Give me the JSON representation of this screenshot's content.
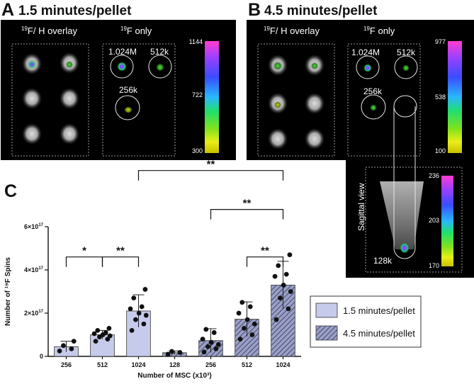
{
  "panel_a": {
    "letter": "A",
    "title": "1.5 minutes/pellet",
    "overlay_label": "F/ H overlay",
    "overlay_sup1": "19",
    "overlay_sup2": "1",
    "f_only_label": "F only",
    "f_only_sup": "19",
    "cell_labels": [
      "1.024M",
      "512k",
      "256k"
    ],
    "scale_ticks": [
      "1144",
      "722",
      "300"
    ]
  },
  "panel_b": {
    "letter": "B",
    "title": "4.5 minutes/pellet",
    "overlay_label": "F/ H overlay",
    "overlay_sup1": "19",
    "overlay_sup2": "1",
    "f_only_label": "F only",
    "f_only_sup": "19",
    "cell_labels": [
      "1.024M",
      "512k",
      "256k"
    ],
    "scale_ticks": [
      "977",
      "538",
      "100"
    ],
    "sagittal_label": "Sagittal view",
    "sagittal_cell_label": "128k",
    "sagittal_scale_ticks": [
      "236",
      "203",
      "170"
    ]
  },
  "panel_c": {
    "letter": "C"
  },
  "colors": {
    "bar_light": "#c6cbec",
    "bar_hatched_bg": "#9aa0c8",
    "hatch_line": "#4a4e6e",
    "bar_edge": "#333333"
  },
  "chart_data": {
    "type": "bar",
    "categories": [
      "256",
      "512",
      "1024",
      "128",
      "256",
      "512",
      "1024"
    ],
    "xlabel": "Number of MSC (x10³)",
    "ylabel": "Number of ¹⁹F Spins",
    "ylim": [
      0,
      6e+17
    ],
    "yticks": [
      {
        "value": 0,
        "base": "0",
        "exp": ""
      },
      {
        "value": 2e+17,
        "base": "2×10",
        "exp": "17"
      },
      {
        "value": 4e+17,
        "base": "4×10",
        "exp": "17"
      },
      {
        "value": 6e+17,
        "base": "6×10",
        "exp": "17"
      }
    ],
    "series": [
      {
        "name": "1.5 minutes/pellet",
        "style": "solid",
        "bars": [
          {
            "index": 0,
            "mean": 4.5e+16,
            "sd": 2.5e+16,
            "points": [
              2.5e+16,
              3.5e+16,
              5e+16,
              7e+16
            ]
          },
          {
            "index": 1,
            "mean": 1e+17,
            "sd": 2e+16,
            "points": [
              7e+16,
              8e+16,
              9e+16,
              9.5e+16,
              1e+17,
              1.05e+17,
              1.1e+17,
              1.2e+17,
              1.3e+17
            ]
          },
          {
            "index": 2,
            "mean": 2.1e+17,
            "sd": 7.5e+16,
            "points": [
              1.2e+17,
              1.5e+17,
              1.7e+17,
              1.9e+17,
              2e+17,
              2.2e+17,
              2.3e+17,
              2.7e+17,
              3.1e+17
            ]
          }
        ]
      },
      {
        "name": "4.5 minutes/pellet",
        "style": "hatched",
        "bars": [
          {
            "index": 3,
            "mean": 1.7e+16,
            "sd": 8000000000000000.0,
            "points": [
              1e+16,
              1.8e+16,
              2.3e+16
            ]
          },
          {
            "index": 4,
            "mean": 7.3e+16,
            "sd": 5.5e+16,
            "points": [
              2e+16,
              3.5e+16,
              4.5e+16,
              5.5e+16,
              6.5e+16,
              8e+16,
              1.1e+17,
              1.25e+17
            ]
          },
          {
            "index": 5,
            "mean": 1.72e+17,
            "sd": 8e+16,
            "points": [
              8e+16,
              1e+17,
              1.3e+17,
              1.5e+17,
              1.7e+17,
              2e+17,
              2.3e+17,
              2.5e+17
            ]
          },
          {
            "index": 6,
            "mean": 3.3e+17,
            "sd": 1.1e+17,
            "points": [
              1.7e+17,
              2.2e+17,
              2.7e+17,
              3e+17,
              3.3e+17,
              3.7e+17,
              3.8e+17,
              4.2e+17,
              4.7e+17
            ]
          }
        ]
      }
    ],
    "significance": [
      {
        "from": 0,
        "to": 1,
        "label": "*",
        "y": 4.6e+17
      },
      {
        "from": 1,
        "to": 2,
        "label": "**",
        "y": 4.6e+17
      },
      {
        "from": 2,
        "to": 6,
        "label": "**",
        "y": 8.6e+17
      },
      {
        "from": 4,
        "to": 6,
        "label": "**",
        "y": 6.8e+17
      },
      {
        "from": 5,
        "to": 6,
        "label": "**",
        "y": 4.6e+17
      }
    ],
    "legend": {
      "position": "right"
    }
  }
}
